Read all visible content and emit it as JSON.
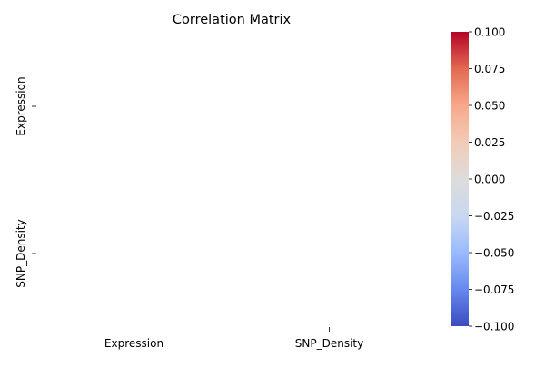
{
  "chart_data": {
    "type": "heatmap",
    "title": "Correlation Matrix",
    "x_categories": [
      "Expression",
      "SNP_Density"
    ],
    "y_categories": [
      "Expression",
      "SNP_Density"
    ],
    "values": [
      [
        null,
        null
      ],
      [
        null,
        null
      ]
    ],
    "colorbar": {
      "colormap": "coolwarm",
      "range": [
        -0.1,
        0.1
      ],
      "ticks": [
        "0.100",
        "0.075",
        "0.050",
        "0.025",
        "0.000",
        "−0.025",
        "−0.050",
        "−0.075",
        "−0.100"
      ],
      "tick_values": [
        0.1,
        0.075,
        0.05,
        0.025,
        0,
        -0.025,
        -0.05,
        -0.075,
        -0.1
      ],
      "colors": [
        "#3b4cc0",
        "#6788ee",
        "#9abbff",
        "#c9d7f0",
        "#dddcdc",
        "#f2cbb7",
        "#f7a889",
        "#e26952",
        "#b40426"
      ]
    },
    "grid": false
  }
}
